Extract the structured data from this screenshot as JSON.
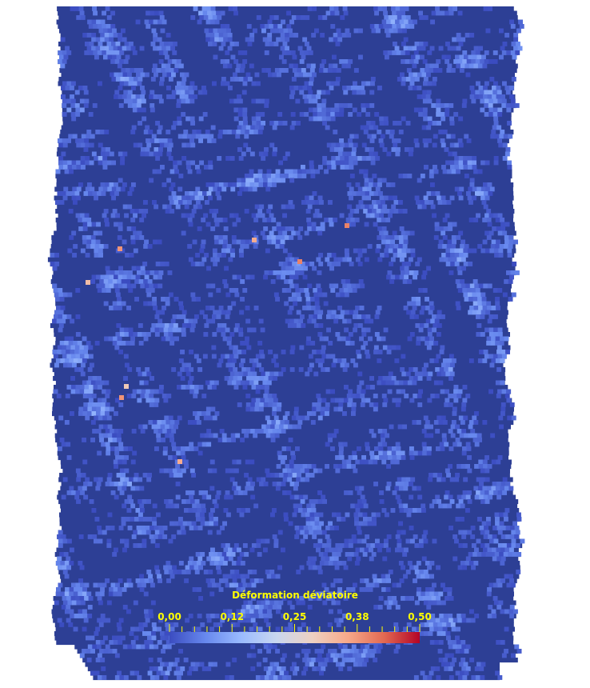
{
  "chart_data": {
    "type": "heatmap",
    "field": "Déformation déviatoire",
    "colormap": {
      "name": "cool-to-warm",
      "stops": [
        "#3b4cc0",
        "#6788ee",
        "#9abbff",
        "#c9d7f0",
        "#edd1c2",
        "#f7a889",
        "#e26952",
        "#b40426"
      ]
    },
    "range": [
      0.0,
      0.5
    ],
    "legend": {
      "title": "Déformation déviatoire",
      "ticks": [
        0.0,
        0.125,
        0.25,
        0.375,
        0.5
      ],
      "tick_labels": [
        "0,00",
        "0,12",
        "0,25",
        "0,38",
        "0,50"
      ],
      "minor_ticks_per_interval": 5,
      "placement": "bottom-center",
      "text_color": "#ffff00"
    },
    "distribution": {
      "background_value": 0.0,
      "typical_max": 0.2,
      "outliers_approx": [
        0.35,
        0.4,
        0.38,
        0.3,
        0.32
      ]
    },
    "colors": {
      "background": "#ffffff",
      "mesh_low": "#2d3f95"
    }
  }
}
